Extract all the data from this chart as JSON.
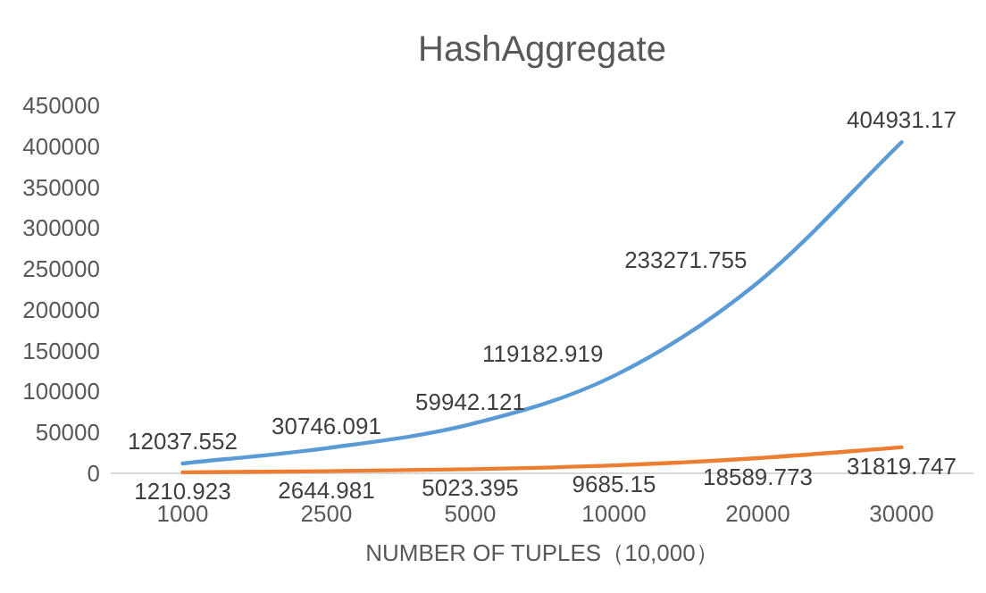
{
  "chart_data": {
    "type": "line",
    "title": "HashAggregate",
    "xlabel": "NUMBER OF TUPLES（10,000）",
    "categories": [
      "1000",
      "2500",
      "5000",
      "10000",
      "20000",
      "30000"
    ],
    "series": [
      {
        "color": "#5b9bd5",
        "values": [
          12037.552,
          30746.091,
          59942.121,
          119182.919,
          233271.755,
          404931.17
        ]
      },
      {
        "color": "#ed7d31",
        "values": [
          1210.923,
          2644.981,
          5023.395,
          9685.15,
          18589.773,
          31819.747
        ]
      }
    ],
    "ylim": [
      0,
      450000
    ],
    "yticks": [
      0,
      50000,
      100000,
      150000,
      200000,
      250000,
      300000,
      350000,
      400000,
      450000
    ],
    "data_labels": true
  }
}
